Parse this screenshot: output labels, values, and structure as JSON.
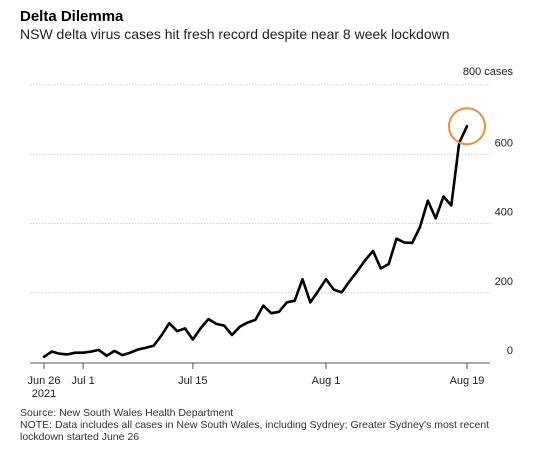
{
  "header": {
    "title": "Delta Dilemma",
    "subtitle": "NSW delta virus cases hit fresh record despite near 8 week lockdown"
  },
  "footer": {
    "source": "Source: New South Wales Health Department",
    "note_line1": "NOTE: Data includes all cases in New South Wales, including Sydney; Greater Sydney's most recent",
    "note_line2": "lockdown started June 26"
  },
  "colors": {
    "line": "#000000",
    "highlight": "#e8913a",
    "grid": "#cccccc",
    "axis": "#555555"
  },
  "chart_data": {
    "type": "line",
    "title": "Delta Dilemma",
    "subtitle": "NSW delta virus cases hit fresh record despite near 8 week lockdown",
    "ylabel": "",
    "xlabel": "",
    "y_axis_side": "right",
    "ylim": [
      0,
      800
    ],
    "y_ticks": [
      {
        "value": 0,
        "label": "0"
      },
      {
        "value": 200,
        "label": "200"
      },
      {
        "value": 400,
        "label": "400"
      },
      {
        "value": 600,
        "label": "600"
      },
      {
        "value": 800,
        "label": "800 cases"
      }
    ],
    "x_ticks": [
      {
        "day": 0,
        "label": "Jun 26",
        "sublabel": "2021"
      },
      {
        "day": 5,
        "label": "Jul 1"
      },
      {
        "day": 19,
        "label": "Jul 15"
      },
      {
        "day": 36,
        "label": "Aug 1"
      },
      {
        "day": 54,
        "label": "Aug 19"
      }
    ],
    "xlim_days": [
      0,
      54
    ],
    "grid": true,
    "highlight_last_point": true,
    "series": [
      {
        "start_date": "2021-06-26",
        "values": [
          15,
          30,
          24,
          22,
          27,
          27,
          30,
          35,
          18,
          32,
          20,
          27,
          36,
          41,
          47,
          77,
          112,
          89,
          97,
          65,
          98,
          124,
          110,
          105,
          78,
          102,
          114,
          122,
          163,
          141,
          145,
          172,
          177,
          239,
          172,
          205,
          239,
          209,
          201,
          233,
          262,
          294,
          321,
          270,
          283,
          356,
          345,
          344,
          390,
          466,
          415,
          478,
          452,
          633,
          681
        ]
      }
    ]
  }
}
